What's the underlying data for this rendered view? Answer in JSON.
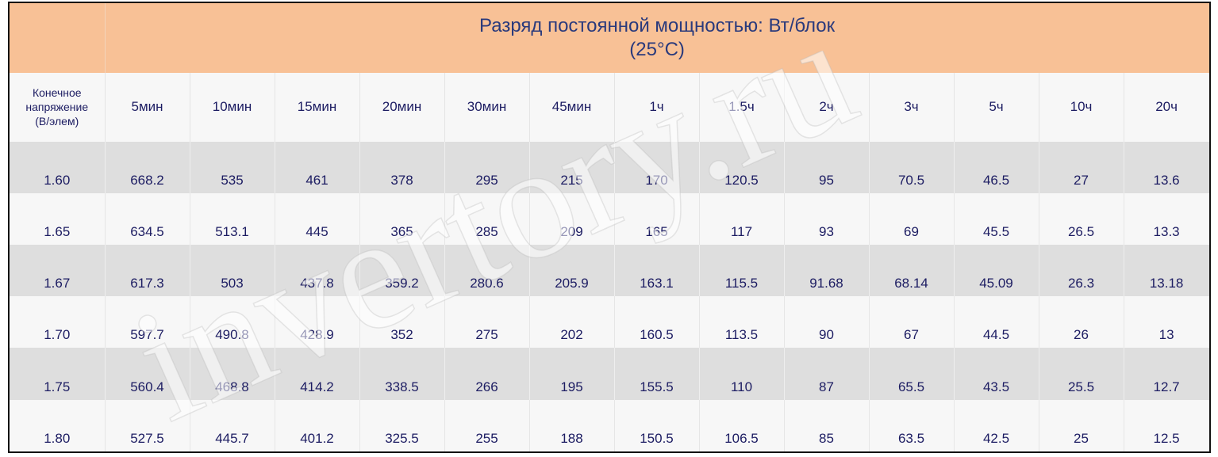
{
  "title": {
    "line1": "Разряд постоянной мощностью: Вт/блок",
    "line2": "(25°C)"
  },
  "first_header": [
    "Конечное",
    "напряжение",
    "(В/элем)"
  ],
  "columns": [
    "5мин",
    "10мин",
    "15мин",
    "20мин",
    "30мин",
    "45мин",
    "1ч",
    "1.5ч",
    "2ч",
    "3ч",
    "5ч",
    "10ч",
    "20ч"
  ],
  "rows": [
    {
      "voltage": "1.60",
      "values": [
        "668.2",
        "535",
        "461",
        "378",
        "295",
        "215",
        "170",
        "120.5",
        "95",
        "70.5",
        "46.5",
        "27",
        "13.6"
      ]
    },
    {
      "voltage": "1.65",
      "values": [
        "634.5",
        "513.1",
        "445",
        "365",
        "285",
        "209",
        "165",
        "117",
        "93",
        "69",
        "45.5",
        "26.5",
        "13.3"
      ]
    },
    {
      "voltage": "1.67",
      "values": [
        "617.3",
        "503",
        "437.8",
        "359.2",
        "280.6",
        "205.9",
        "163.1",
        "115.5",
        "91.68",
        "68.14",
        "45.09",
        "26.3",
        "13.18"
      ]
    },
    {
      "voltage": "1.70",
      "values": [
        "597.7",
        "490.8",
        "428.9",
        "352",
        "275",
        "202",
        "160.5",
        "113.5",
        "90",
        "67",
        "44.5",
        "26",
        "13"
      ]
    },
    {
      "voltage": "1.75",
      "values": [
        "560.4",
        "468.8",
        "414.2",
        "338.5",
        "266",
        "195",
        "155.5",
        "110",
        "87",
        "65.5",
        "43.5",
        "25.5",
        "12.7"
      ]
    },
    {
      "voltage": "1.80",
      "values": [
        "527.5",
        "445.7",
        "401.2",
        "325.5",
        "255",
        "188",
        "150.5",
        "106.5",
        "85",
        "63.5",
        "42.5",
        "25",
        "12.5"
      ]
    }
  ],
  "watermark": "invertory.ru",
  "colors": {
    "header_bg": "#f8c196",
    "dark_row": "#dedede",
    "light_row": "#f7f7f7",
    "text": "#1c1c62"
  }
}
